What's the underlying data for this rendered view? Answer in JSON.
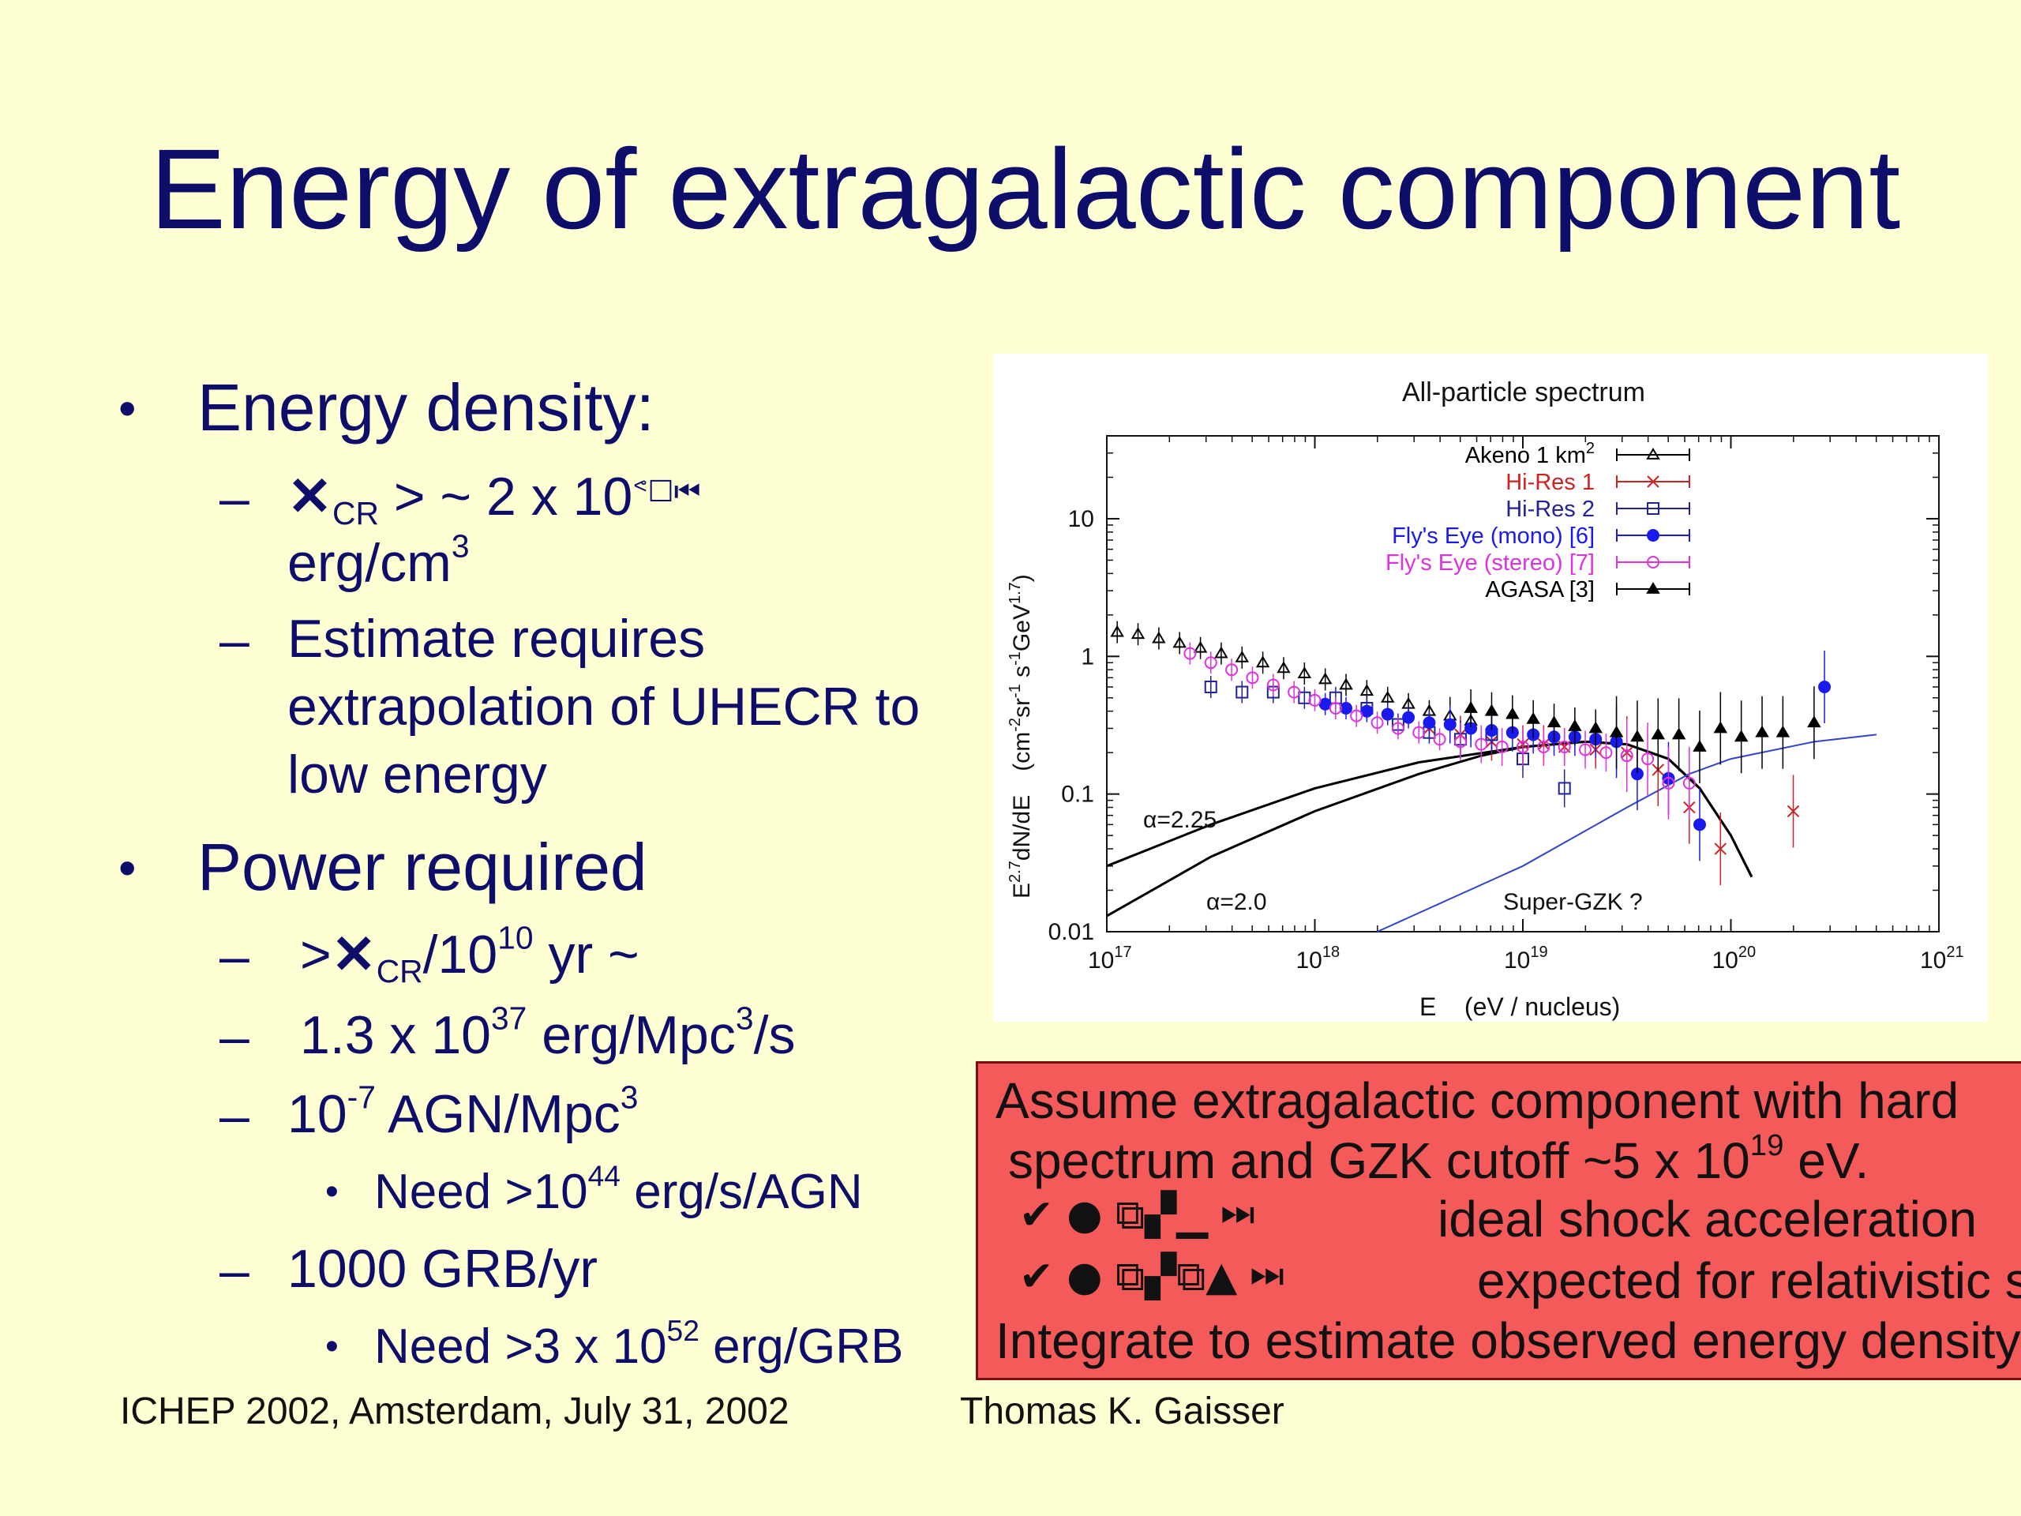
{
  "slide_title": "Energy of extragalactic component",
  "bullets": {
    "energy_density": "Energy density:",
    "rho_symbol": "✕",
    "rho_sub": "CR",
    "rho_text": " > ~ 2 x 10",
    "rho_glyphs": "ᕝ☐⏮",
    "rho_unit": "erg/cm",
    "rho_unit_exp": "3",
    "estimate_1": "Estimate requires",
    "estimate_2": "extrapolation of UHECR to",
    "estimate_3": "low energy",
    "power_required": "Power required",
    "power_prefix": ">",
    "power_symbol": "✕",
    "power_sub": "CR",
    "power_mid": "/10",
    "power_exp": "10",
    "power_suffix": " yr ~",
    "p1_base": "1.3 x 10",
    "p1_exp": "37",
    "p1_unit": " erg/Mpc",
    "p1_unit_exp": "3",
    "p1_tail": "/s",
    "agn_base": "10",
    "agn_exp": "-7",
    "agn_unit": " AGN/Mpc",
    "agn_unit_exp": "3",
    "agn_need_base": "Need >10",
    "agn_need_exp": "44",
    "agn_need_unit": " erg/s/AGN",
    "grb": "1000 GRB/yr",
    "grb_need_base": "Need >3 x 10",
    "grb_need_exp": "52",
    "grb_need_unit": " erg/GRB",
    "dash": "–",
    "dot": "•"
  },
  "redbox": {
    "line1": "Assume extragalactic component with hard",
    "line2_base": "spectrum and GZK cutoff ~5 x 10",
    "line2_exp": "19",
    "line2_tail": " eV.",
    "line3_glyphs": "✔  ●  ⧉▞▁  ⏭",
    "line3_text": "ideal shock acceleration",
    "line4_glyphs": "✔  ●  ⧉▞⧉▲  ⏭",
    "line4_text": "expected for relativistic s",
    "line5": "Integrate to estimate observed energy density"
  },
  "footer": {
    "left": "ICHEP 2002, Amsterdam, July 31, 2002",
    "right": "Thomas K. Gaisser"
  },
  "chart_data": {
    "type": "scatter",
    "title": "All-particle spectrum",
    "xlabel": "E    (eV / nucleus)",
    "ylabel": "E^2.7 dN/dE   (cm^-2 sr^-1 s^-1 GeV^1.7)",
    "xscale": "log",
    "yscale": "log",
    "xlim": [
      1e+17,
      1e+21
    ],
    "ylim": [
      0.01,
      40
    ],
    "xticks": [
      {
        "value": 17,
        "base": "10",
        "exp": "17"
      },
      {
        "value": 18,
        "base": "10",
        "exp": "18"
      },
      {
        "value": 19,
        "base": "10",
        "exp": "19"
      },
      {
        "value": 20,
        "base": "10",
        "exp": "20"
      },
      {
        "value": 21,
        "base": "10",
        "exp": "21"
      }
    ],
    "yticks": [
      {
        "value": 0.01,
        "label": "0.01"
      },
      {
        "value": 0.1,
        "label": "0.1"
      },
      {
        "value": 1,
        "label": "1"
      },
      {
        "value": 10,
        "label": "10"
      }
    ],
    "legend_position": "top-right",
    "series": [
      {
        "name": "Akeno 1 km",
        "name_exp": "2",
        "color": "#000000",
        "marker": "triangle-open",
        "points": [
          [
            17.05,
            1.5
          ],
          [
            17.15,
            1.45
          ],
          [
            17.25,
            1.35
          ],
          [
            17.35,
            1.25
          ],
          [
            17.45,
            1.15
          ],
          [
            17.55,
            1.05
          ],
          [
            17.65,
            0.98
          ],
          [
            17.75,
            0.9
          ],
          [
            17.85,
            0.82
          ],
          [
            17.95,
            0.75
          ],
          [
            18.05,
            0.68
          ],
          [
            18.15,
            0.62
          ],
          [
            18.25,
            0.56
          ],
          [
            18.35,
            0.5
          ],
          [
            18.45,
            0.45
          ],
          [
            18.55,
            0.4
          ],
          [
            18.65,
            0.37
          ],
          [
            18.75,
            0.34
          ]
        ]
      },
      {
        "name": "Hi-Res 1",
        "color": "#CC2222",
        "marker": "cross",
        "points": [
          [
            18.55,
            0.3
          ],
          [
            18.7,
            0.27
          ],
          [
            18.85,
            0.24
          ],
          [
            19.0,
            0.23
          ],
          [
            19.1,
            0.23
          ],
          [
            19.2,
            0.22
          ],
          [
            19.35,
            0.21
          ],
          [
            19.5,
            0.2
          ],
          [
            19.65,
            0.15
          ],
          [
            19.8,
            0.08
          ],
          [
            19.95,
            0.04
          ],
          [
            20.3,
            0.075
          ]
        ]
      },
      {
        "name": "Hi-Res 2",
        "color": "#222299",
        "marker": "square-open",
        "points": [
          [
            17.5,
            0.6
          ],
          [
            17.65,
            0.55
          ],
          [
            17.8,
            0.55
          ],
          [
            17.95,
            0.5
          ],
          [
            18.1,
            0.5
          ],
          [
            18.25,
            0.42
          ],
          [
            18.4,
            0.32
          ],
          [
            18.55,
            0.28
          ],
          [
            18.7,
            0.25
          ],
          [
            18.85,
            0.27
          ],
          [
            19.0,
            0.18
          ],
          [
            19.2,
            0.11
          ]
        ]
      },
      {
        "name": "Fly's Eye (mono) [6]",
        "name_suffix": "",
        "color": "#1a1aee",
        "marker": "circle-filled",
        "points": [
          [
            18.05,
            0.45
          ],
          [
            18.15,
            0.42
          ],
          [
            18.25,
            0.4
          ],
          [
            18.35,
            0.38
          ],
          [
            18.45,
            0.36
          ],
          [
            18.55,
            0.33
          ],
          [
            18.65,
            0.32
          ],
          [
            18.75,
            0.3
          ],
          [
            18.85,
            0.29
          ],
          [
            18.95,
            0.28
          ],
          [
            19.05,
            0.27
          ],
          [
            19.15,
            0.26
          ],
          [
            19.25,
            0.26
          ],
          [
            19.35,
            0.25
          ],
          [
            19.45,
            0.24
          ],
          [
            19.55,
            0.14
          ],
          [
            19.7,
            0.13
          ],
          [
            19.85,
            0.06
          ],
          [
            20.45,
            0.6
          ]
        ]
      },
      {
        "name": "Fly's Eye (stereo) [7]",
        "color": "#DD33DD",
        "marker": "circle-open",
        "points": [
          [
            17.4,
            1.05
          ],
          [
            17.5,
            0.9
          ],
          [
            17.6,
            0.8
          ],
          [
            17.7,
            0.7
          ],
          [
            17.8,
            0.62
          ],
          [
            17.9,
            0.55
          ],
          [
            18.0,
            0.48
          ],
          [
            18.1,
            0.42
          ],
          [
            18.2,
            0.37
          ],
          [
            18.3,
            0.33
          ],
          [
            18.4,
            0.3
          ],
          [
            18.5,
            0.28
          ],
          [
            18.6,
            0.25
          ],
          [
            18.7,
            0.24
          ],
          [
            18.8,
            0.23
          ],
          [
            18.9,
            0.22
          ],
          [
            19.0,
            0.22
          ],
          [
            19.1,
            0.22
          ],
          [
            19.2,
            0.22
          ],
          [
            19.3,
            0.21
          ],
          [
            19.4,
            0.2
          ],
          [
            19.5,
            0.19
          ],
          [
            19.6,
            0.18
          ],
          [
            19.7,
            0.12
          ],
          [
            19.8,
            0.12
          ]
        ]
      },
      {
        "name": "AGASA [3]",
        "color": "#000000",
        "marker": "triangle-filled",
        "points": [
          [
            18.75,
            0.42
          ],
          [
            18.85,
            0.4
          ],
          [
            18.95,
            0.38
          ],
          [
            19.05,
            0.35
          ],
          [
            19.15,
            0.33
          ],
          [
            19.25,
            0.31
          ],
          [
            19.35,
            0.3
          ],
          [
            19.45,
            0.28
          ],
          [
            19.55,
            0.26
          ],
          [
            19.65,
            0.27
          ],
          [
            19.75,
            0.27
          ],
          [
            19.85,
            0.22
          ],
          [
            19.95,
            0.3
          ],
          [
            20.05,
            0.26
          ],
          [
            20.15,
            0.28
          ],
          [
            20.25,
            0.28
          ],
          [
            20.4,
            0.33
          ]
        ]
      }
    ],
    "curves": [
      {
        "name": "",
        "label": "α=2.25",
        "color": "#000000",
        "points": [
          [
            17.0,
            0.03
          ],
          [
            17.5,
            0.06
          ],
          [
            18.0,
            0.11
          ],
          [
            18.5,
            0.17
          ],
          [
            19.0,
            0.22
          ],
          [
            19.3,
            0.24
          ],
          [
            19.5,
            0.23
          ],
          [
            19.7,
            0.18
          ],
          [
            19.85,
            0.11
          ],
          [
            20.0,
            0.05
          ],
          [
            20.1,
            0.025
          ]
        ]
      },
      {
        "name": "",
        "label": "α=2.0",
        "color": "#000000",
        "points": [
          [
            17.0,
            0.013
          ],
          [
            17.5,
            0.035
          ],
          [
            18.0,
            0.075
          ],
          [
            18.5,
            0.14
          ],
          [
            18.8,
            0.19
          ],
          [
            19.0,
            0.22
          ],
          [
            19.3,
            0.24
          ],
          [
            19.5,
            0.23
          ],
          [
            19.7,
            0.18
          ],
          [
            19.85,
            0.11
          ],
          [
            20.0,
            0.05
          ],
          [
            20.1,
            0.025
          ]
        ]
      },
      {
        "name": "",
        "label": "Super-GZK ?",
        "color": "#3344cc",
        "points": [
          [
            18.3,
            0.01
          ],
          [
            19.0,
            0.03
          ],
          [
            19.5,
            0.08
          ],
          [
            19.8,
            0.14
          ],
          [
            20.0,
            0.18
          ],
          [
            20.4,
            0.24
          ],
          [
            20.7,
            0.27
          ]
        ]
      }
    ],
    "label_alpha225": "α=2.25",
    "label_alpha20": "α=2.0",
    "label_supergzk": "Super-GZK ?",
    "ylabel_parts": {
      "a": "E",
      "a_exp": "2.7",
      "b": "dN/dE",
      "c": "(cm",
      "c_exp": "-2",
      "d": "sr",
      "d_exp": "-1",
      "e": " s",
      "e_exp": "-1",
      "f": "GeV",
      "f_exp": "1.7",
      "g": ")"
    }
  }
}
